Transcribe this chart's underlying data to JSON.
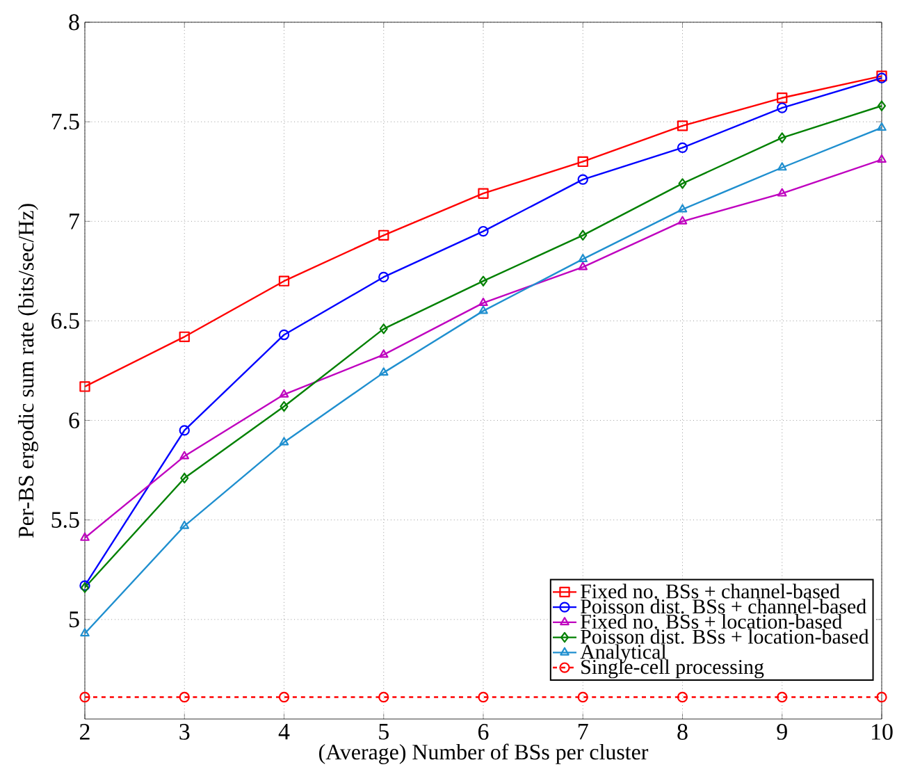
{
  "chart_data": {
    "type": "line",
    "xlabel": "(Average) Number of BSs per cluster",
    "ylabel": "Per-BS ergodic sum rate (bits/sec/Hz)",
    "x": [
      2,
      3,
      4,
      5,
      6,
      7,
      8,
      9,
      10
    ],
    "xlim": [
      2,
      10
    ],
    "xticks": [
      2,
      3,
      4,
      5,
      6,
      7,
      8,
      9,
      10
    ],
    "ylim": [
      4.5,
      8
    ],
    "yticks": [
      5,
      5.5,
      6,
      6.5,
      7,
      7.5,
      8
    ],
    "grid": true,
    "legend": "bottom right",
    "line_style": "solid",
    "series": [
      {
        "name": "Fixed no. BSs + channel-based",
        "color": "#ff0000",
        "marker": "square",
        "values": [
          6.17,
          6.42,
          6.7,
          6.93,
          7.14,
          7.3,
          7.48,
          7.62,
          7.73
        ]
      },
      {
        "name": "Poisson dist. BSs + channel-based",
        "color": "#0000ff",
        "marker": "circle",
        "values": [
          5.17,
          5.95,
          6.43,
          6.72,
          6.95,
          7.21,
          7.37,
          7.57,
          7.72
        ]
      },
      {
        "name": "Fixed no. BSs + location-based",
        "color": "#bf00bf",
        "marker": "triangle",
        "values": [
          5.41,
          5.82,
          6.13,
          6.33,
          6.59,
          6.77,
          7.0,
          7.14,
          7.31
        ]
      },
      {
        "name": "Poisson dist. BSs + location-based",
        "color": "#008000",
        "marker": "diamond",
        "values": [
          5.16,
          5.71,
          6.07,
          6.46,
          6.7,
          6.93,
          7.19,
          7.42,
          7.58
        ]
      },
      {
        "name": "Analytical",
        "color": "#1f8fcf",
        "marker": "triangle",
        "values": [
          4.93,
          5.47,
          5.89,
          6.24,
          6.55,
          6.81,
          7.06,
          7.27,
          7.47
        ]
      },
      {
        "name": "Single-cell processing",
        "color": "#ff0000",
        "marker": "circle",
        "line_style": "dashed",
        "values": [
          4.61,
          4.61,
          4.61,
          4.61,
          4.61,
          4.61,
          4.61,
          4.61,
          4.61
        ]
      }
    ]
  }
}
